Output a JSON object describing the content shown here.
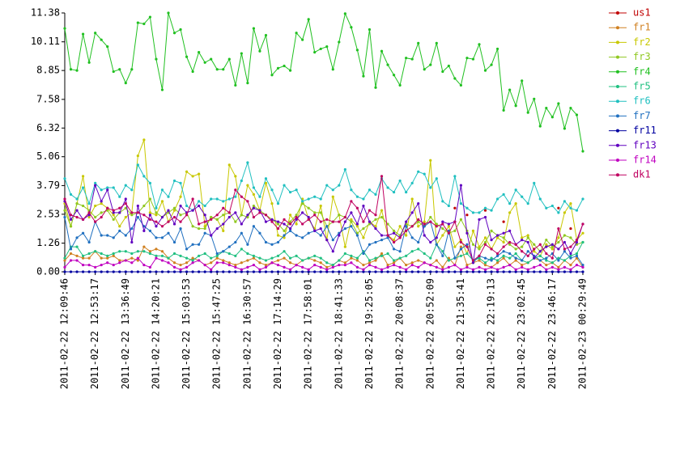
{
  "chart_data": {
    "type": "line",
    "categories": [
      "2011-02-22 12:09:46",
      null,
      null,
      null,
      null,
      "2011-02-22 12:53:17",
      null,
      null,
      null,
      null,
      "2011-02-22 13:36:49",
      null,
      null,
      null,
      null,
      "2011-02-22 14:20:21",
      null,
      null,
      null,
      null,
      "2011-02-22 15:03:53",
      null,
      null,
      null,
      null,
      "2011-02-22 15:47:25",
      null,
      null,
      null,
      null,
      "2011-02-22 16:30:57",
      null,
      null,
      null,
      null,
      "2011-02-22 17:14:29",
      null,
      null,
      null,
      null,
      "2011-02-22 17:58:01",
      null,
      null,
      null,
      null,
      "2011-02-22 18:41:33",
      null,
      null,
      null,
      null,
      "2011-02-22 19:25:05",
      null,
      null,
      null,
      null,
      "2011-02-22 20:08:37",
      null,
      null,
      null,
      null,
      "2011-02-22 20:52:09",
      null,
      null,
      null,
      null,
      "2011-02-22 21:35:41",
      null,
      null,
      null,
      null,
      "2011-02-22 22:19:13",
      null,
      null,
      null,
      null,
      "2011-02-22 23:02:45",
      null,
      null,
      null,
      null,
      "2011-02-22 23:46:17",
      null,
      null,
      null,
      null,
      "2011-02-23 00:29:49"
    ],
    "ylim": [
      0,
      11.38
    ],
    "yticks": [
      {
        "value": 0,
        "label": "0.00"
      },
      1.26,
      2.53,
      3.79,
      5.06,
      6.32,
      7.58,
      8.85,
      10.11,
      11.38
    ],
    "legend": "right",
    "series": [
      {
        "name": "us1",
        "color": "#c00000",
        "values": [
          null,
          null,
          null,
          null,
          null,
          null,
          null,
          null,
          null,
          null,
          null,
          null,
          null,
          null,
          null,
          null,
          null,
          null,
          null,
          null,
          null,
          null,
          null,
          null,
          null,
          null,
          null,
          null,
          null,
          null,
          null,
          null,
          null,
          null,
          null,
          null,
          null,
          null,
          null,
          null,
          null,
          null,
          null,
          null,
          null,
          null,
          null,
          null,
          null,
          null,
          null,
          null,
          null,
          null,
          null,
          null,
          null,
          null,
          null,
          null,
          null,
          null,
          null,
          null,
          2.8,
          null,
          2.5,
          null,
          null,
          2.7,
          null,
          null,
          2.2,
          null,
          null,
          null,
          null,
          null,
          null,
          null,
          null,
          2.8,
          null,
          1.9,
          null,
          null
        ]
      },
      {
        "name": "fr1",
        "color": "#d08020",
        "values": [
          0.5,
          0.8,
          0.7,
          0.6,
          0.6,
          0.9,
          0.6,
          0.6,
          0.7,
          0.5,
          0.5,
          0.6,
          0.5,
          1.1,
          0.9,
          1.0,
          0.9,
          0.6,
          0.4,
          0.3,
          0.4,
          0.6,
          0.5,
          0.3,
          0.4,
          0.6,
          0.5,
          0.4,
          0.3,
          0.4,
          0.5,
          0.6,
          0.4,
          0.3,
          0.4,
          0.5,
          0.6,
          0.4,
          0.3,
          0.5,
          0.6,
          0.5,
          0.4,
          0.2,
          0.3,
          0.5,
          0.4,
          0.6,
          0.5,
          0.3,
          0.4,
          0.5,
          0.8,
          0.3,
          0.4,
          0.6,
          0.3,
          0.4,
          0.5,
          0.4,
          0.3,
          0.5,
          0.2,
          0.6,
          0.3,
          1.1,
          0.3,
          0.4,
          0.5,
          0.3,
          0.2,
          0.4,
          0.6,
          0.3,
          0.5,
          0.3,
          0.4,
          0.6,
          0.5,
          0.3,
          0.4,
          0.2,
          0.5,
          0.3,
          0.6,
          0.2
        ]
      },
      {
        "name": "fr2",
        "color": "#c8c800",
        "values": [
          3.0,
          2.0,
          3.0,
          4.2,
          2.4,
          2.9,
          3.0,
          2.8,
          2.5,
          2.0,
          2.4,
          2.6,
          5.1,
          5.8,
          2.6,
          2.5,
          3.1,
          2.2,
          2.7,
          3.3,
          4.4,
          4.2,
          4.3,
          2.0,
          2.4,
          2.3,
          1.8,
          4.7,
          4.2,
          2.5,
          3.8,
          3.4,
          2.7,
          3.9,
          3.0,
          1.6,
          1.5,
          2.5,
          2.1,
          3.2,
          2.3,
          1.9,
          2.9,
          1.4,
          3.3,
          2.5,
          1.1,
          2.3,
          2.0,
          1.5,
          2.2,
          2.0,
          2.7,
          1.6,
          1.4,
          2.0,
          1.6,
          3.2,
          2.0,
          2.2,
          4.9,
          1.2,
          1.6,
          2.0,
          1.1,
          1.4,
          0.8,
          1.8,
          1.1,
          1.5,
          1.0,
          1.5,
          1.3,
          2.6,
          3.0,
          1.5,
          1.6,
          0.9,
          0.7,
          1.2,
          1.0,
          1.5,
          2.6,
          3.0,
          1.4,
          1.7
        ]
      },
      {
        "name": "fr3",
        "color": "#90c820",
        "values": [
          2.7,
          2.0,
          3.0,
          2.9,
          2.7,
          2.4,
          2.6,
          2.7,
          2.3,
          2.6,
          2.8,
          2.5,
          2.6,
          2.9,
          3.2,
          2.6,
          2.4,
          2.6,
          2.8,
          2.5,
          2.6,
          2.0,
          1.9,
          1.9,
          2.4,
          2.3,
          2.5,
          2.6,
          2.2,
          2.5,
          2.4,
          2.9,
          2.7,
          2.5,
          2.3,
          2.1,
          1.8,
          2.2,
          2.5,
          3.0,
          2.8,
          2.6,
          2.6,
          2.0,
          2.2,
          2.5,
          2.4,
          2.2,
          1.7,
          1.9,
          2.1,
          2.3,
          2.4,
          2.1,
          1.8,
          1.6,
          2.1,
          2.0,
          2.2,
          2.0,
          2.4,
          2.1,
          1.9,
          1.7,
          1.8,
          2.3,
          1.8,
          1.2,
          1.0,
          1.3,
          1.8,
          1.6,
          1.5,
          1.2,
          1.0,
          1.1,
          1.5,
          1.2,
          0.9,
          1.4,
          1.1,
          1.3,
          1.6,
          1.5,
          1.2,
          1.3
        ]
      },
      {
        "name": "fr4",
        "color": "#20c020",
        "values": [
          10.7,
          8.9,
          8.85,
          10.45,
          9.2,
          10.5,
          10.2,
          9.9,
          8.8,
          8.9,
          8.3,
          8.9,
          10.95,
          10.9,
          11.2,
          9.35,
          8.0,
          11.38,
          10.5,
          10.65,
          9.45,
          8.8,
          9.65,
          9.2,
          9.35,
          8.9,
          8.9,
          9.35,
          8.2,
          9.6,
          8.3,
          10.7,
          9.7,
          10.4,
          8.65,
          8.95,
          9.05,
          8.85,
          10.5,
          10.2,
          11.1,
          9.65,
          9.8,
          9.9,
          8.9,
          10.1,
          11.35,
          10.75,
          9.75,
          8.6,
          10.65,
          8.1,
          9.7,
          9.1,
          8.65,
          8.2,
          9.4,
          9.35,
          10.05,
          8.9,
          9.1,
          10.05,
          8.8,
          9.05,
          8.5,
          8.2,
          9.4,
          9.35,
          10.0,
          8.85,
          9.1,
          9.8,
          7.1,
          8.0,
          7.3,
          8.4,
          7.0,
          7.6,
          6.4,
          7.2,
          6.8,
          7.4,
          6.3,
          7.2,
          6.9,
          5.3
        ]
      },
      {
        "name": "fr5",
        "color": "#20c080",
        "values": [
          0.6,
          1.1,
          1.1,
          0.7,
          0.8,
          0.9,
          0.8,
          0.7,
          0.8,
          0.9,
          0.9,
          0.8,
          0.9,
          0.9,
          0.8,
          0.7,
          0.7,
          0.6,
          0.8,
          0.7,
          0.6,
          0.5,
          0.7,
          0.8,
          0.6,
          0.7,
          0.9,
          0.8,
          0.7,
          1.0,
          0.8,
          0.7,
          0.6,
          0.5,
          0.6,
          0.7,
          0.9,
          0.6,
          0.7,
          0.5,
          0.6,
          0.7,
          0.6,
          0.4,
          0.3,
          0.5,
          0.8,
          0.7,
          0.6,
          0.9,
          0.5,
          0.6,
          0.7,
          0.8,
          0.5,
          0.6,
          0.7,
          0.9,
          1.0,
          0.8,
          0.6,
          1.2,
          0.9,
          0.5,
          0.6,
          0.7,
          0.8,
          0.5,
          0.6,
          0.4,
          0.6,
          0.5,
          0.7,
          0.6,
          0.8,
          0.5,
          0.4,
          0.6,
          0.7,
          0.5,
          0.4,
          0.6,
          0.5,
          0.7,
          0.8,
          1.3
        ]
      },
      {
        "name": "fr6",
        "color": "#20c0c0",
        "values": [
          4.1,
          3.4,
          3.2,
          3.7,
          3.0,
          3.9,
          3.6,
          3.7,
          3.7,
          3.3,
          3.8,
          3.6,
          4.7,
          4.2,
          3.9,
          2.8,
          3.6,
          3.3,
          4.0,
          3.9,
          2.9,
          2.7,
          3.1,
          2.9,
          3.2,
          3.2,
          3.1,
          3.2,
          3.3,
          4.0,
          4.8,
          3.7,
          3.3,
          4.1,
          3.6,
          3.0,
          3.8,
          3.5,
          3.6,
          3.1,
          3.2,
          3.3,
          3.2,
          3.8,
          3.6,
          3.8,
          4.5,
          3.6,
          3.3,
          3.2,
          3.6,
          3.4,
          4.1,
          3.7,
          3.5,
          4.0,
          3.5,
          3.9,
          4.4,
          4.3,
          3.7,
          4.1,
          3.1,
          2.9,
          4.2,
          3.0,
          2.8,
          2.6,
          2.6,
          2.8,
          2.7,
          3.2,
          3.4,
          3.0,
          3.6,
          3.3,
          3.0,
          3.9,
          3.2,
          2.8,
          2.9,
          2.6,
          3.1,
          2.8,
          2.7,
          3.2
        ]
      },
      {
        "name": "fr7",
        "color": "#2070c0",
        "values": [
          2.4,
          1.0,
          1.5,
          1.7,
          1.3,
          2.2,
          1.6,
          1.6,
          1.5,
          1.8,
          1.6,
          1.9,
          2.4,
          2.0,
          1.8,
          1.5,
          1.5,
          1.7,
          1.3,
          1.9,
          1.0,
          1.2,
          1.2,
          1.7,
          1.6,
          0.8,
          0.9,
          1.1,
          1.3,
          1.7,
          1.2,
          2.0,
          1.7,
          1.3,
          1.2,
          1.3,
          1.6,
          1.8,
          1.6,
          1.5,
          1.7,
          1.8,
          1.6,
          2.0,
          1.4,
          1.7,
          1.9,
          2.0,
          1.6,
          0.8,
          1.2,
          1.3,
          1.4,
          1.5,
          1.0,
          0.9,
          2.0,
          1.5,
          1.3,
          2.0,
          2.2,
          1.2,
          0.7,
          1.8,
          0.6,
          1.0,
          1.2,
          0.4,
          0.7,
          0.6,
          0.5,
          0.7,
          0.9,
          0.8,
          0.6,
          0.5,
          0.9,
          0.7,
          0.5,
          0.6,
          0.8,
          0.5,
          0.9,
          0.6,
          0.7,
          0.3
        ]
      },
      {
        "name": "fr11",
        "color": "#0000a0",
        "values": [
          0,
          0,
          0,
          0,
          0,
          0,
          0,
          0,
          0,
          0,
          0,
          0,
          0,
          0,
          0,
          0,
          0,
          0,
          0,
          0,
          0,
          0,
          0,
          0,
          0,
          0,
          0,
          0,
          0,
          0,
          0,
          0,
          0,
          0,
          0,
          0,
          0,
          0,
          0,
          0,
          0,
          0,
          0,
          0,
          0,
          0,
          0,
          0,
          0,
          0,
          0,
          0,
          0,
          0,
          0,
          0,
          0,
          0,
          0,
          0,
          0,
          0,
          0,
          0,
          0,
          0,
          0,
          0,
          0,
          0,
          0,
          0,
          0,
          0,
          0,
          0,
          0,
          0,
          0,
          0,
          0,
          0,
          0,
          0,
          0,
          0
        ]
      },
      {
        "name": "fr13",
        "color": "#6000c0",
        "values": [
          3.1,
          2.3,
          2.7,
          2.3,
          2.5,
          3.8,
          3.1,
          3.6,
          2.6,
          2.6,
          3.2,
          1.3,
          2.9,
          1.8,
          2.5,
          2.0,
          2.4,
          2.7,
          2.1,
          2.9,
          2.6,
          2.7,
          2.9,
          2.5,
          1.6,
          1.9,
          2.1,
          2.4,
          2.6,
          2.1,
          2.5,
          2.8,
          2.7,
          2.2,
          2.3,
          2.2,
          2.1,
          1.9,
          2.3,
          2.6,
          2.4,
          1.8,
          1.9,
          1.4,
          0.9,
          1.6,
          2.2,
          2.6,
          2.1,
          2.9,
          2.2,
          1.9,
          1.6,
          1.6,
          1.7,
          1.5,
          2.2,
          2.6,
          3.0,
          1.6,
          1.3,
          1.5,
          2.2,
          2.1,
          2.2,
          3.8,
          1.7,
          0.4,
          2.3,
          2.4,
          1.4,
          1.6,
          1.7,
          1.8,
          1.2,
          1.4,
          1.3,
          0.6,
          0.9,
          1.1,
          1.2,
          1.0,
          1.3,
          0.8,
          1.3,
          2.1
        ]
      },
      {
        "name": "fr14",
        "color": "#c000c0",
        "values": [
          0.2,
          0.5,
          0.5,
          0.3,
          0.3,
          0.2,
          0.3,
          0.4,
          0.3,
          0.4,
          0.5,
          0.4,
          0.6,
          0.3,
          0.2,
          0.6,
          0.5,
          0.4,
          0.2,
          0.1,
          0.2,
          0.4,
          0.5,
          0.3,
          0.1,
          0.4,
          0.4,
          0.3,
          0.2,
          0.1,
          0.2,
          0.3,
          0.1,
          0.2,
          0.4,
          0.3,
          0.2,
          0.1,
          0.3,
          0.2,
          0.1,
          0.3,
          0.2,
          0.1,
          0.2,
          0.3,
          0.3,
          0.4,
          0.2,
          0.1,
          0.3,
          0.2,
          0.1,
          0.2,
          0.3,
          0.2,
          0.1,
          0.3,
          0.2,
          0.4,
          0.3,
          0.2,
          0.1,
          0.2,
          0.3,
          0.1,
          0.2,
          0.1,
          0.2,
          0.1,
          0.2,
          0.1,
          0.2,
          0.3,
          0.1,
          0.2,
          0.1,
          0.2,
          0.3,
          0.1,
          0.2,
          0.1,
          0.2,
          0.1,
          0.3,
          0.2
        ]
      },
      {
        "name": "dk1",
        "color": "#c00060",
        "values": [
          3.2,
          2.5,
          2.4,
          2.3,
          2.6,
          2.2,
          2.4,
          2.8,
          2.7,
          2.8,
          3.0,
          2.6,
          2.6,
          2.5,
          2.3,
          2.2,
          2.0,
          2.2,
          2.4,
          2.2,
          2.5,
          3.2,
          2.1,
          2.2,
          2.3,
          2.5,
          2.8,
          2.6,
          3.6,
          3.3,
          3.1,
          2.4,
          2.6,
          2.5,
          2.2,
          1.9,
          2.3,
          2.1,
          2.4,
          2.1,
          2.3,
          2.5,
          2.2,
          2.3,
          2.2,
          2.2,
          2.4,
          3.1,
          2.8,
          2.2,
          2.7,
          2.5,
          4.2,
          1.6,
          1.3,
          1.5,
          1.8,
          2.0,
          2.3,
          2.1,
          2.2,
          2.0,
          2.1,
          1.7,
          2.2,
          1.3,
          1.1,
          0.5,
          0.7,
          1.2,
          1.0,
          0.8,
          1.1,
          1.3,
          1.2,
          0.9,
          0.7,
          1.0,
          1.2,
          0.8,
          0.6,
          1.9,
          1.0,
          1.1,
          1.4,
          2.1
        ]
      }
    ]
  }
}
